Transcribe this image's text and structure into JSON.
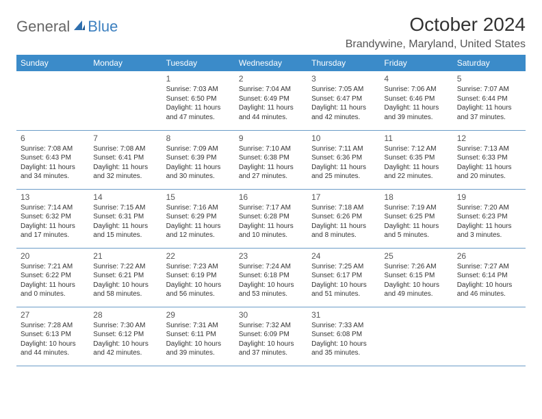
{
  "brand": {
    "part1": "General",
    "part2": "Blue"
  },
  "title": "October 2024",
  "location": "Brandywine, Maryland, United States",
  "colors": {
    "header_bg": "#3b8bc9",
    "header_fg": "#ffffff",
    "border": "#6a9bc7",
    "brand_gray": "#666666",
    "brand_blue": "#3b7fbf"
  },
  "day_headers": [
    "Sunday",
    "Monday",
    "Tuesday",
    "Wednesday",
    "Thursday",
    "Friday",
    "Saturday"
  ],
  "weeks": [
    [
      null,
      null,
      {
        "n": "1",
        "sr": "Sunrise: 7:03 AM",
        "ss": "Sunset: 6:50 PM",
        "d1": "Daylight: 11 hours",
        "d2": "and 47 minutes."
      },
      {
        "n": "2",
        "sr": "Sunrise: 7:04 AM",
        "ss": "Sunset: 6:49 PM",
        "d1": "Daylight: 11 hours",
        "d2": "and 44 minutes."
      },
      {
        "n": "3",
        "sr": "Sunrise: 7:05 AM",
        "ss": "Sunset: 6:47 PM",
        "d1": "Daylight: 11 hours",
        "d2": "and 42 minutes."
      },
      {
        "n": "4",
        "sr": "Sunrise: 7:06 AM",
        "ss": "Sunset: 6:46 PM",
        "d1": "Daylight: 11 hours",
        "d2": "and 39 minutes."
      },
      {
        "n": "5",
        "sr": "Sunrise: 7:07 AM",
        "ss": "Sunset: 6:44 PM",
        "d1": "Daylight: 11 hours",
        "d2": "and 37 minutes."
      }
    ],
    [
      {
        "n": "6",
        "sr": "Sunrise: 7:08 AM",
        "ss": "Sunset: 6:43 PM",
        "d1": "Daylight: 11 hours",
        "d2": "and 34 minutes."
      },
      {
        "n": "7",
        "sr": "Sunrise: 7:08 AM",
        "ss": "Sunset: 6:41 PM",
        "d1": "Daylight: 11 hours",
        "d2": "and 32 minutes."
      },
      {
        "n": "8",
        "sr": "Sunrise: 7:09 AM",
        "ss": "Sunset: 6:39 PM",
        "d1": "Daylight: 11 hours",
        "d2": "and 30 minutes."
      },
      {
        "n": "9",
        "sr": "Sunrise: 7:10 AM",
        "ss": "Sunset: 6:38 PM",
        "d1": "Daylight: 11 hours",
        "d2": "and 27 minutes."
      },
      {
        "n": "10",
        "sr": "Sunrise: 7:11 AM",
        "ss": "Sunset: 6:36 PM",
        "d1": "Daylight: 11 hours",
        "d2": "and 25 minutes."
      },
      {
        "n": "11",
        "sr": "Sunrise: 7:12 AM",
        "ss": "Sunset: 6:35 PM",
        "d1": "Daylight: 11 hours",
        "d2": "and 22 minutes."
      },
      {
        "n": "12",
        "sr": "Sunrise: 7:13 AM",
        "ss": "Sunset: 6:33 PM",
        "d1": "Daylight: 11 hours",
        "d2": "and 20 minutes."
      }
    ],
    [
      {
        "n": "13",
        "sr": "Sunrise: 7:14 AM",
        "ss": "Sunset: 6:32 PM",
        "d1": "Daylight: 11 hours",
        "d2": "and 17 minutes."
      },
      {
        "n": "14",
        "sr": "Sunrise: 7:15 AM",
        "ss": "Sunset: 6:31 PM",
        "d1": "Daylight: 11 hours",
        "d2": "and 15 minutes."
      },
      {
        "n": "15",
        "sr": "Sunrise: 7:16 AM",
        "ss": "Sunset: 6:29 PM",
        "d1": "Daylight: 11 hours",
        "d2": "and 12 minutes."
      },
      {
        "n": "16",
        "sr": "Sunrise: 7:17 AM",
        "ss": "Sunset: 6:28 PM",
        "d1": "Daylight: 11 hours",
        "d2": "and 10 minutes."
      },
      {
        "n": "17",
        "sr": "Sunrise: 7:18 AM",
        "ss": "Sunset: 6:26 PM",
        "d1": "Daylight: 11 hours",
        "d2": "and 8 minutes."
      },
      {
        "n": "18",
        "sr": "Sunrise: 7:19 AM",
        "ss": "Sunset: 6:25 PM",
        "d1": "Daylight: 11 hours",
        "d2": "and 5 minutes."
      },
      {
        "n": "19",
        "sr": "Sunrise: 7:20 AM",
        "ss": "Sunset: 6:23 PM",
        "d1": "Daylight: 11 hours",
        "d2": "and 3 minutes."
      }
    ],
    [
      {
        "n": "20",
        "sr": "Sunrise: 7:21 AM",
        "ss": "Sunset: 6:22 PM",
        "d1": "Daylight: 11 hours",
        "d2": "and 0 minutes."
      },
      {
        "n": "21",
        "sr": "Sunrise: 7:22 AM",
        "ss": "Sunset: 6:21 PM",
        "d1": "Daylight: 10 hours",
        "d2": "and 58 minutes."
      },
      {
        "n": "22",
        "sr": "Sunrise: 7:23 AM",
        "ss": "Sunset: 6:19 PM",
        "d1": "Daylight: 10 hours",
        "d2": "and 56 minutes."
      },
      {
        "n": "23",
        "sr": "Sunrise: 7:24 AM",
        "ss": "Sunset: 6:18 PM",
        "d1": "Daylight: 10 hours",
        "d2": "and 53 minutes."
      },
      {
        "n": "24",
        "sr": "Sunrise: 7:25 AM",
        "ss": "Sunset: 6:17 PM",
        "d1": "Daylight: 10 hours",
        "d2": "and 51 minutes."
      },
      {
        "n": "25",
        "sr": "Sunrise: 7:26 AM",
        "ss": "Sunset: 6:15 PM",
        "d1": "Daylight: 10 hours",
        "d2": "and 49 minutes."
      },
      {
        "n": "26",
        "sr": "Sunrise: 7:27 AM",
        "ss": "Sunset: 6:14 PM",
        "d1": "Daylight: 10 hours",
        "d2": "and 46 minutes."
      }
    ],
    [
      {
        "n": "27",
        "sr": "Sunrise: 7:28 AM",
        "ss": "Sunset: 6:13 PM",
        "d1": "Daylight: 10 hours",
        "d2": "and 44 minutes."
      },
      {
        "n": "28",
        "sr": "Sunrise: 7:30 AM",
        "ss": "Sunset: 6:12 PM",
        "d1": "Daylight: 10 hours",
        "d2": "and 42 minutes."
      },
      {
        "n": "29",
        "sr": "Sunrise: 7:31 AM",
        "ss": "Sunset: 6:11 PM",
        "d1": "Daylight: 10 hours",
        "d2": "and 39 minutes."
      },
      {
        "n": "30",
        "sr": "Sunrise: 7:32 AM",
        "ss": "Sunset: 6:09 PM",
        "d1": "Daylight: 10 hours",
        "d2": "and 37 minutes."
      },
      {
        "n": "31",
        "sr": "Sunrise: 7:33 AM",
        "ss": "Sunset: 6:08 PM",
        "d1": "Daylight: 10 hours",
        "d2": "and 35 minutes."
      },
      null,
      null
    ]
  ]
}
